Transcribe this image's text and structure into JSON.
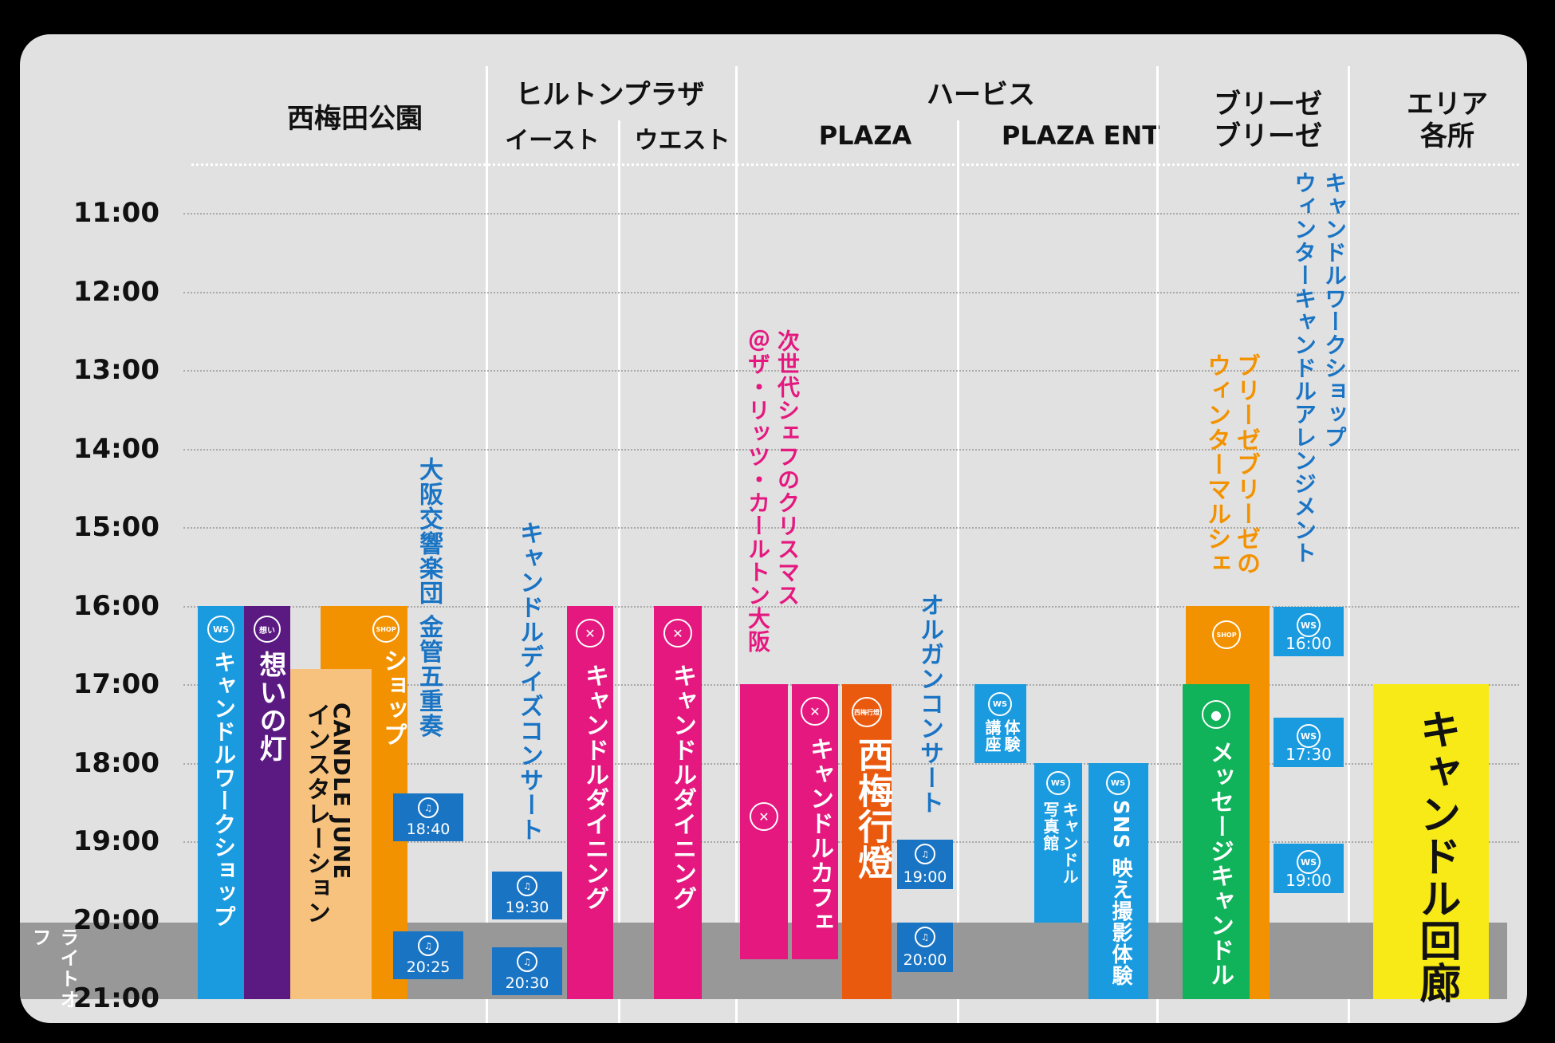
{
  "headers": {
    "nishiumeda": "西梅田公園",
    "hilton": "ヒルトンプラザ",
    "east": "イースト",
    "west": "ウエスト",
    "herbis": "ハービス",
    "plaza": "PLAZA",
    "plaza_ent": "PLAZA ENT",
    "breeze1": "ブリーゼ",
    "breeze2": "ブリーゼ",
    "area1": "エリア",
    "area2": "各所"
  },
  "times": [
    "11:00",
    "12:00",
    "13:00",
    "14:00",
    "15:00",
    "16:00",
    "17:00",
    "18:00",
    "19:00",
    "20:00",
    "21:00"
  ],
  "light_off": "ライトオフ",
  "colors": {
    "blue": "#1a9be0",
    "purple": "#5a1a82",
    "peach": "#f7c27e",
    "orange": "#f39200",
    "magenta": "#e4187f",
    "red_orange": "#ea5a0e",
    "green": "#10b25a",
    "yellow": "#f7ea17",
    "dark_blue": "#1a74c4",
    "gray_band": "#989898"
  },
  "events": {
    "candle_workshop": "キャンドルワークショップ",
    "omoi_no_hi": "想いの灯",
    "candle_june_title": "CANDLE JUNE",
    "candle_june_sub": "インスタレーション",
    "shop": "ショップ",
    "osaka_brass": "大阪交響楽団 金管五重奏",
    "brass_time1": "18:40",
    "brass_time2": "20:25",
    "candle_days": "キャンドルデイズコンサート",
    "days_time1": "19:30",
    "days_time2": "20:30",
    "dining_east": "キャンドルダイニング",
    "dining_west": "キャンドルダイニング",
    "ritz": "次世代シェフのクリスマス",
    "ritz2": "＠ザ・リッツ・カールトン大阪",
    "candle_cafe": "キャンドルカフェ",
    "umeda_andon": "西梅行燈",
    "organ": "オルガンコンサート",
    "organ_time1": "19:00",
    "organ_time2": "20:00",
    "koza": "体験",
    "koza2": "講座",
    "shashinkan": "キャンドル",
    "shashinkan2": "写真館",
    "sns": "SNS 映え撮影体験",
    "breeze_marche": "ブリーゼブリーゼの",
    "breeze_marche2": "ウィンターマルシェ",
    "message_candle": "メッセージキャンドル",
    "winter_ws": "キャンドルワークショップ",
    "winter_ws2": "ウィンターキャンドルアレンジメント",
    "ws_time1": "16:00",
    "ws_time2": "17:30",
    "ws_time3": "19:00",
    "candle_corridor": "キャンドル回廊"
  },
  "icons": {
    "ws": "WS",
    "shop": "SHOP",
    "omoi": "想い",
    "andon": "西梅行燈",
    "music": "♫",
    "dining": "fork-knife",
    "water": "drop"
  }
}
